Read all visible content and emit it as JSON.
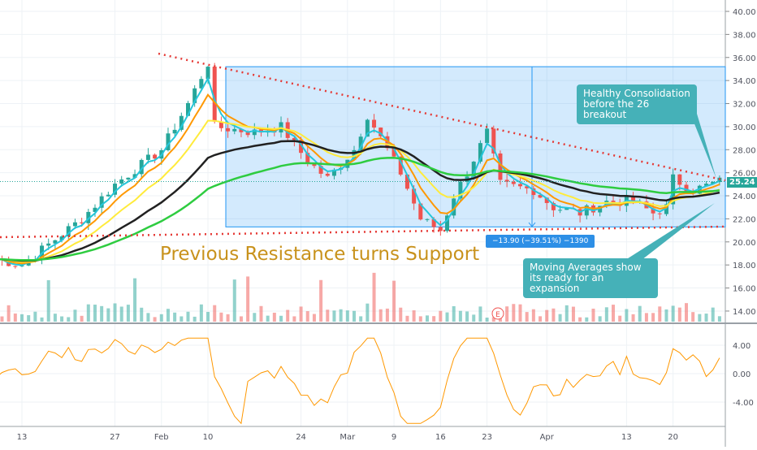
{
  "chart_data": {
    "type": "line",
    "title": "",
    "price_axis": {
      "ticks": [
        "40.00",
        "38.00",
        "36.00",
        "34.00",
        "32.00",
        "30.00",
        "28.00",
        "26.00",
        "24.00",
        "22.00",
        "20.00",
        "18.00",
        "16.00",
        "14.00"
      ],
      "ylim": [
        14,
        40
      ]
    },
    "oscillator_axis": {
      "ticks": [
        "4.00",
        "0.00",
        "-4.00"
      ]
    },
    "x_ticks": [
      {
        "label": "13",
        "date": "2020-01-13"
      },
      {
        "label": "27",
        "date": "2020-01-27"
      },
      {
        "label": "Feb",
        "date": "2020-02-03"
      },
      {
        "label": "10",
        "date": "2020-02-10"
      },
      {
        "label": "24",
        "date": "2020-02-24"
      },
      {
        "label": "Mar",
        "date": "2020-03-02"
      },
      {
        "label": "9",
        "date": "2020-03-09"
      },
      {
        "label": "16",
        "date": "2020-03-16"
      },
      {
        "label": "23",
        "date": "2020-03-23"
      },
      {
        "label": "Apr",
        "date": "2020-04-01"
      },
      {
        "label": "13",
        "date": "2020-04-13"
      },
      {
        "label": "20",
        "date": "2020-04-20"
      }
    ],
    "series": [
      {
        "values": [
          {
            "date": "2020-01-09",
            "close": 18.5
          },
          {
            "date": "2020-01-13",
            "close": 18
          },
          {
            "date": "2020-01-22",
            "close": 22
          },
          {
            "date": "2020-01-27",
            "close": 25
          },
          {
            "date": "2020-02-03",
            "close": 28
          },
          {
            "date": "2020-02-07",
            "close": 32
          },
          {
            "date": "2020-02-10",
            "close": 35.5
          },
          {
            "date": "2020-02-11",
            "close": 30
          },
          {
            "date": "2020-02-17",
            "close": 29.5
          },
          {
            "date": "2020-02-21",
            "close": 30
          },
          {
            "date": "2020-02-25",
            "close": 27
          },
          {
            "date": "2020-02-28",
            "close": 25.5
          },
          {
            "date": "2020-03-03",
            "close": 28
          },
          {
            "date": "2020-03-05",
            "close": 31
          },
          {
            "date": "2020-03-06",
            "close": 30
          },
          {
            "date": "2020-03-10",
            "close": 26
          },
          {
            "date": "2020-03-13",
            "close": 22
          },
          {
            "date": "2020-03-16",
            "close": 21
          },
          {
            "date": "2020-03-18",
            "close": 24
          },
          {
            "date": "2020-03-20",
            "close": 26
          },
          {
            "date": "2020-03-23",
            "close": 29.5
          },
          {
            "date": "2020-03-25",
            "close": 25
          },
          {
            "date": "2020-03-30",
            "close": 24.5
          },
          {
            "date": "2020-04-02",
            "close": 23
          },
          {
            "date": "2020-04-06",
            "close": 22.5
          },
          {
            "date": "2020-04-10",
            "close": 23.5
          },
          {
            "date": "2020-04-14",
            "close": 23.5
          },
          {
            "date": "2020-04-17",
            "close": 22.5
          },
          {
            "date": "2020-04-19",
            "close": 23
          },
          {
            "date": "2020-04-20",
            "close": 25.5
          },
          {
            "date": "2020-04-23",
            "close": 24.5
          },
          {
            "date": "2020-04-27",
            "close": 25.24
          }
        ]
      }
    ],
    "moving_average_colors": [
      "#26c6da",
      "#ff9800",
      "#ffeb3b",
      "#212121",
      "#2ecc40"
    ],
    "last_price": "25.24",
    "colors": {
      "up": "#26a69a",
      "down": "#ef5350",
      "oscillator": "#ff9800",
      "box": "#2196f3",
      "trendline": "#e53935"
    }
  },
  "annotations": {
    "support_text": "Previous Resistance turns Support",
    "callout_top_line1": "Healthy Consolidation",
    "callout_top_line2": "before the 26 breakout",
    "callout_bottom_line1": "Moving Averages show",
    "callout_bottom_line2": "its ready for an expansion",
    "measure_label": "−13.90 (−39.51%) −1390",
    "earnings_marker": "E"
  }
}
